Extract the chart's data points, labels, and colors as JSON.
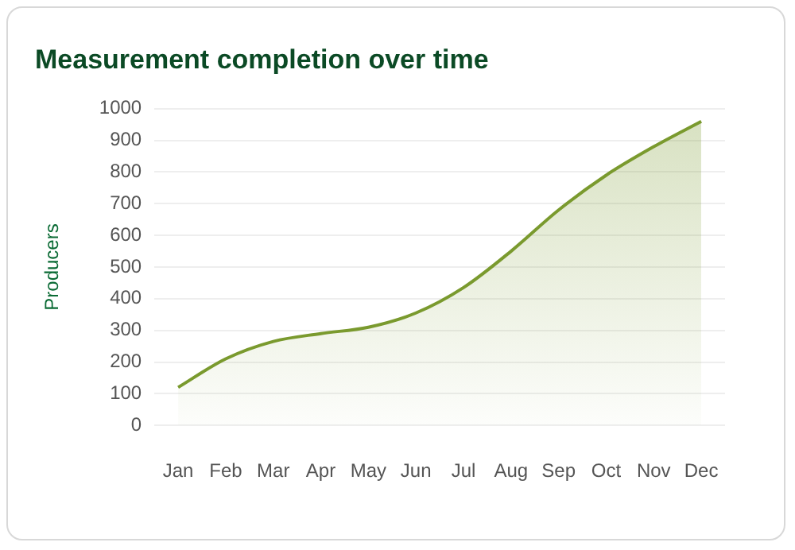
{
  "chart_data": {
    "type": "area",
    "title": "Measurement completion over time",
    "ylabel": "Producers",
    "categories": [
      "Jan",
      "Feb",
      "Mar",
      "Apr",
      "May",
      "Jun",
      "Jul",
      "Aug",
      "Sep",
      "Oct",
      "Nov",
      "Dec"
    ],
    "values": [
      120,
      210,
      265,
      290,
      310,
      355,
      435,
      550,
      680,
      790,
      880,
      960
    ],
    "color": "#7a9a2e",
    "ylim": [
      0,
      1000
    ],
    "yticks": [
      0,
      100,
      200,
      300,
      400,
      500,
      600,
      700,
      800,
      900,
      1000
    ],
    "grid": "y",
    "legend": false,
    "marker": "none"
  }
}
